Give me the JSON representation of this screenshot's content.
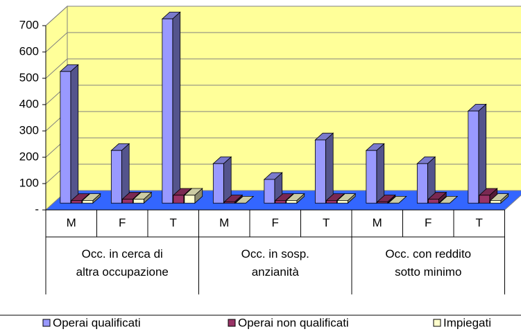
{
  "chart_data": {
    "type": "bar3d",
    "groups": [
      "Occ. in cerca di\naltra occupazione",
      "Occ. in sosp.\nanzianità",
      "Occ. con reddito\nsotto minimo"
    ],
    "categories": [
      "M",
      "F",
      "T",
      "M",
      "F",
      "T",
      "M",
      "F",
      "T"
    ],
    "series": [
      {
        "name": "Operai qualificati",
        "color": "#9999ff",
        "values": [
          500,
          200,
          700,
          150,
          90,
          240,
          200,
          150,
          350
        ]
      },
      {
        "name": "Operai non qualificati",
        "color": "#993366",
        "values": [
          10,
          15,
          30,
          5,
          10,
          10,
          5,
          15,
          30
        ]
      },
      {
        "name": "Impiegati",
        "color": "#ffffcc",
        "values": [
          10,
          15,
          30,
          0,
          10,
          10,
          0,
          0,
          10
        ]
      }
    ],
    "ylim": [
      0,
      700
    ],
    "yticks": [
      {
        "value": 0,
        "label": "-"
      },
      100,
      200,
      300,
      400,
      500,
      600,
      700
    ],
    "grid": true,
    "wall_color": "#ffff99",
    "floor_color": "#3366ff"
  }
}
